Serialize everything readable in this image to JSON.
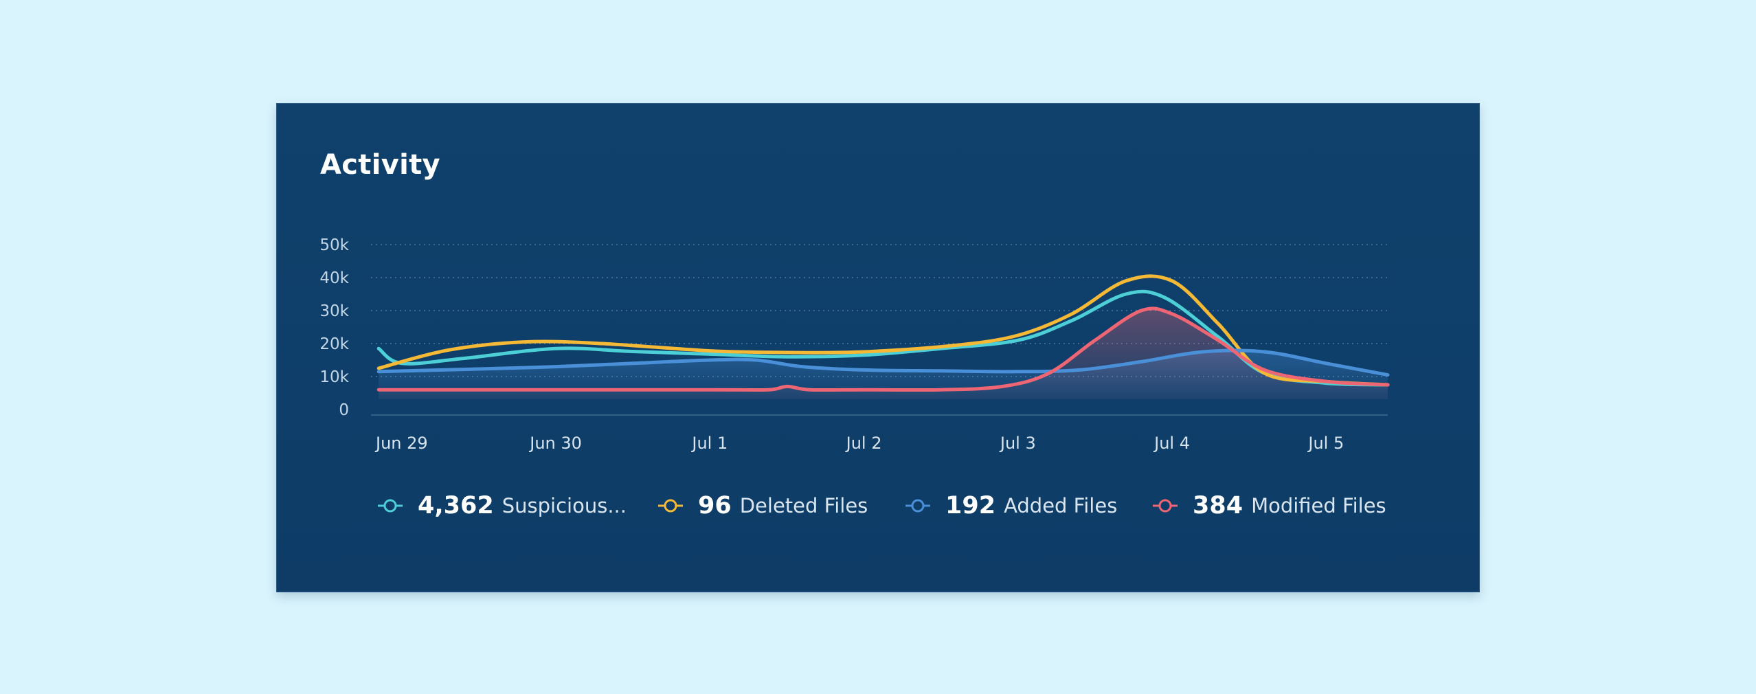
{
  "card": {
    "title": "Activity"
  },
  "chart_data": {
    "type": "line",
    "title": "Activity",
    "x_labels": [
      "Jun 29",
      "Jun 30",
      "Jul 1",
      "Jul 2",
      "Jul 3",
      "Jul 4",
      "Jul 5"
    ],
    "y_ticks": [
      {
        "value": 50000,
        "label": "50k"
      },
      {
        "value": 40000,
        "label": "40k"
      },
      {
        "value": 30000,
        "label": "30k"
      },
      {
        "value": 20000,
        "label": "20k"
      },
      {
        "value": 10000,
        "label": "10k"
      },
      {
        "value": 0,
        "label": "0"
      }
    ],
    "ylim": [
      0,
      50000
    ],
    "xlim": [
      -0.2,
      6.4
    ],
    "grid": true,
    "series": [
      {
        "name": "Suspicious...",
        "key": "suspicious",
        "color": "#4ccfd6",
        "fill": false,
        "points": [
          [
            -0.15,
            18500
          ],
          [
            0.0,
            14000
          ],
          [
            0.4,
            15500
          ],
          [
            1.0,
            18500
          ],
          [
            1.5,
            17600
          ],
          [
            2.0,
            16800
          ],
          [
            2.5,
            16000
          ],
          [
            3.0,
            16500
          ],
          [
            3.5,
            18500
          ],
          [
            4.0,
            21000
          ],
          [
            4.35,
            27000
          ],
          [
            4.7,
            35000
          ],
          [
            4.95,
            34000
          ],
          [
            5.3,
            22000
          ],
          [
            5.6,
            11000
          ],
          [
            6.0,
            8000
          ],
          [
            6.4,
            7500
          ]
        ]
      },
      {
        "name": "Deleted Files",
        "key": "deleted",
        "color": "#f5b935",
        "fill": false,
        "points": [
          [
            -0.15,
            12500
          ],
          [
            0.3,
            18000
          ],
          [
            0.8,
            20500
          ],
          [
            1.3,
            20000
          ],
          [
            2.0,
            17800
          ],
          [
            2.5,
            17300
          ],
          [
            3.0,
            17500
          ],
          [
            3.6,
            19500
          ],
          [
            4.0,
            22500
          ],
          [
            4.35,
            29000
          ],
          [
            4.7,
            39000
          ],
          [
            5.0,
            39000
          ],
          [
            5.3,
            26000
          ],
          [
            5.6,
            11000
          ],
          [
            6.0,
            8500
          ],
          [
            6.4,
            7500
          ]
        ]
      },
      {
        "name": "Added Files",
        "key": "added",
        "color": "#4a90d9",
        "fill": true,
        "points": [
          [
            -0.15,
            11500
          ],
          [
            0.5,
            12300
          ],
          [
            1.0,
            13000
          ],
          [
            1.5,
            14000
          ],
          [
            2.0,
            15000
          ],
          [
            2.3,
            15000
          ],
          [
            2.6,
            13000
          ],
          [
            3.0,
            12000
          ],
          [
            3.5,
            11700
          ],
          [
            4.0,
            11500
          ],
          [
            4.4,
            12000
          ],
          [
            4.8,
            14500
          ],
          [
            5.2,
            17500
          ],
          [
            5.6,
            17500
          ],
          [
            6.0,
            14000
          ],
          [
            6.4,
            10500
          ]
        ]
      },
      {
        "name": "Modified Files",
        "key": "modified",
        "color": "#ee6574",
        "fill": true,
        "points": [
          [
            -0.15,
            6000
          ],
          [
            2.0,
            6000
          ],
          [
            2.38,
            6000
          ],
          [
            2.5,
            7000
          ],
          [
            2.65,
            6000
          ],
          [
            3.0,
            6000
          ],
          [
            3.5,
            6000
          ],
          [
            3.9,
            7000
          ],
          [
            4.2,
            11000
          ],
          [
            4.5,
            21000
          ],
          [
            4.8,
            30000
          ],
          [
            5.0,
            29000
          ],
          [
            5.3,
            21000
          ],
          [
            5.6,
            12000
          ],
          [
            6.0,
            8500
          ],
          [
            6.4,
            7500
          ]
        ]
      }
    ]
  },
  "legend": [
    {
      "count": "4,362",
      "label": "Suspicious...",
      "color": "#4ccfd6"
    },
    {
      "count": "96",
      "label": "Deleted Files",
      "color": "#f5b935"
    },
    {
      "count": "192",
      "label": "Added Files",
      "color": "#4a90d9"
    },
    {
      "count": "384",
      "label": "Modified Files",
      "color": "#ee6574"
    }
  ]
}
